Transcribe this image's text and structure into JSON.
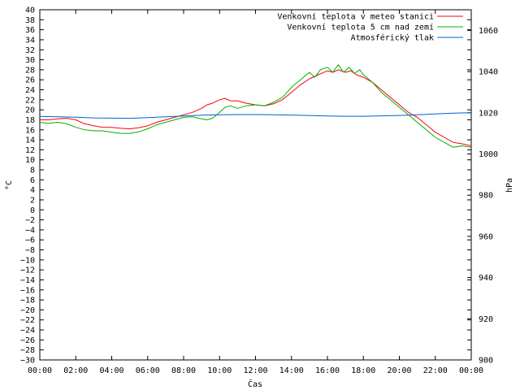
{
  "chart_data": {
    "type": "line",
    "xlabel": "Čas",
    "ylabel": "°C",
    "y2label": "hPa",
    "xlim": [
      0,
      24
    ],
    "ylim": [
      -30,
      40
    ],
    "y2lim": [
      900,
      1070
    ],
    "xticks": [
      "00:00",
      "02:00",
      "04:00",
      "06:00",
      "08:00",
      "10:00",
      "12:00",
      "14:00",
      "16:00",
      "18:00",
      "20:00",
      "22:00",
      "00:00"
    ],
    "yticks": [
      -30,
      -28,
      -26,
      -24,
      -22,
      -20,
      -18,
      -16,
      -14,
      -12,
      -10,
      -8,
      -6,
      -4,
      -2,
      0,
      2,
      4,
      6,
      8,
      10,
      12,
      14,
      16,
      18,
      20,
      22,
      24,
      26,
      28,
      30,
      32,
      34,
      36,
      38,
      40
    ],
    "y2ticks": [
      900,
      920,
      940,
      960,
      980,
      1000,
      1020,
      1040,
      1060
    ],
    "grid": false,
    "legend_position": "top-right",
    "series": [
      {
        "name": "Venkovní teplota v meteo stanici",
        "color": "#ff0000",
        "axis": "left",
        "x": [
          0,
          0.5,
          1,
          1.5,
          2,
          2.5,
          3,
          3.5,
          4,
          4.5,
          5,
          5.5,
          6,
          6.5,
          7,
          7.5,
          8,
          8.5,
          9,
          9.3,
          9.6,
          10,
          10.3,
          10.6,
          11,
          11.5,
          12,
          12.5,
          13,
          13.5,
          14,
          14.5,
          15,
          15.5,
          16,
          16.3,
          16.6,
          17,
          17.3,
          17.6,
          18,
          18.5,
          19,
          19.5,
          20,
          20.5,
          21,
          21.5,
          22,
          22.5,
          23,
          23.5,
          24
        ],
        "y": [
          18,
          18,
          18.2,
          18.3,
          18,
          17.2,
          16.8,
          16.5,
          16.5,
          16.3,
          16.2,
          16.4,
          16.8,
          17.5,
          18,
          18.5,
          19,
          19.5,
          20.3,
          21,
          21.3,
          22,
          22.3,
          21.8,
          21.8,
          21.3,
          21,
          20.8,
          21.2,
          22,
          23.5,
          25,
          26.2,
          27,
          27.8,
          27.5,
          28,
          27.5,
          27.8,
          27,
          26.5,
          25.5,
          24,
          22.5,
          21,
          19.5,
          18.5,
          17,
          15.5,
          14.5,
          13.5,
          13.2,
          12.8
        ]
      },
      {
        "name": "Venkovní teplota 5 cm nad zemí",
        "color": "#00b000",
        "axis": "left",
        "x": [
          0,
          0.5,
          1,
          1.5,
          2,
          2.5,
          3,
          3.5,
          4,
          4.5,
          5,
          5.5,
          6,
          6.5,
          7,
          7.5,
          8,
          8.5,
          9,
          9.3,
          9.6,
          10,
          10.3,
          10.6,
          11,
          11.5,
          12,
          12.5,
          13,
          13.5,
          14,
          14.5,
          15,
          15.3,
          15.6,
          16,
          16.3,
          16.6,
          16.9,
          17.2,
          17.5,
          17.8,
          18,
          18.5,
          19,
          19.5,
          20,
          20.5,
          21,
          21.5,
          22,
          22.5,
          23,
          23.5,
          24
        ],
        "y": [
          17.5,
          17.3,
          17.5,
          17.2,
          16.5,
          16,
          15.8,
          15.8,
          15.5,
          15.3,
          15.3,
          15.6,
          16.2,
          17,
          17.5,
          18,
          18.5,
          18.6,
          18.2,
          18,
          18.3,
          19.5,
          20.5,
          20.8,
          20.3,
          20.8,
          21,
          20.8,
          21.5,
          22.5,
          24.5,
          26,
          27.5,
          26.5,
          28,
          28.5,
          27.5,
          29,
          27.5,
          28.5,
          27.3,
          28,
          27,
          25.5,
          23.5,
          22,
          20.5,
          19,
          17.5,
          16,
          14.5,
          13.5,
          12.5,
          12.8,
          12.5
        ]
      },
      {
        "name": "Atmosférický tlak",
        "color": "#0060d0",
        "axis": "right",
        "x": [
          0,
          1,
          2,
          3,
          4,
          5,
          6,
          7,
          8,
          9,
          10,
          11,
          12,
          13,
          14,
          15,
          16,
          17,
          18,
          19,
          20,
          21,
          22,
          23,
          24
        ],
        "y": [
          1018.2,
          1018,
          1017.8,
          1017.5,
          1017.4,
          1017.3,
          1017.6,
          1018,
          1018.4,
          1018.8,
          1019,
          1019.1,
          1019.1,
          1019,
          1018.9,
          1018.7,
          1018.4,
          1018.3,
          1018.3,
          1018.5,
          1018.7,
          1019,
          1019.4,
          1019.8,
          1020
        ]
      }
    ]
  }
}
